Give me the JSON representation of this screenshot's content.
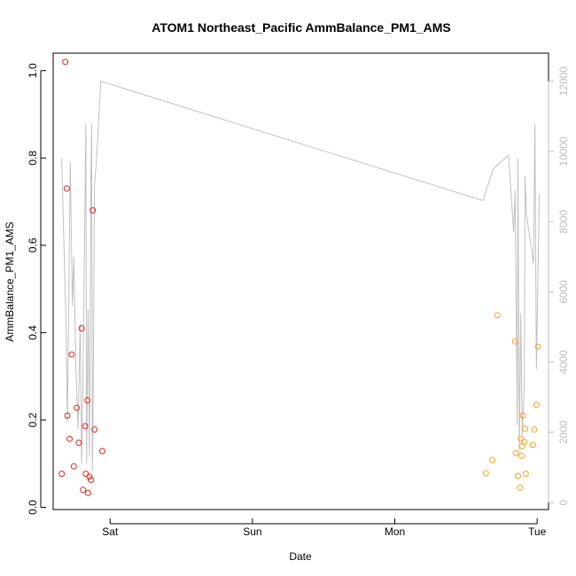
{
  "chart_data": {
    "type": "scatter",
    "title": "ATOM1 Northeast_Pacific AmmBalance_PM1_AMS",
    "xlabel": "Date",
    "ylabel": "AmmBalance_PM1_AMS",
    "x_ticks": [
      {
        "label": "Sat",
        "t": 1.0
      },
      {
        "label": "Sun",
        "t": 2.0
      },
      {
        "label": "Mon",
        "t": 3.0
      },
      {
        "label": "Tue",
        "t": 4.0
      }
    ],
    "xlim": [
      0.6,
      4.08
    ],
    "ylim": [
      -0.005,
      1.04
    ],
    "y_ticks": [
      "0.0",
      "0.2",
      "0.4",
      "0.6",
      "0.8",
      "1.0"
    ],
    "y_tick_values": [
      0,
      0.2,
      0.4,
      0.6,
      0.8,
      1.0
    ],
    "y2lim": [
      -200,
      12800
    ],
    "y2_ticks": [
      "0",
      "2000",
      "4000",
      "6000",
      "8000",
      "10000",
      "12000"
    ],
    "y2_tick_values": [
      0,
      2000,
      4000,
      6000,
      8000,
      10000,
      12000
    ],
    "grid": false,
    "colors": {
      "series_a": "#e8211c",
      "series_b": "#ff9e1f",
      "line": "#c0c0c0",
      "right_axis": "#bdbdbd"
    },
    "series": [
      {
        "color": "#e8211c",
        "points": [
          [
            0.66,
            0.077
          ],
          [
            0.685,
            1.02
          ],
          [
            0.695,
            0.73
          ],
          [
            0.7,
            0.21
          ],
          [
            0.715,
            0.157
          ],
          [
            0.73,
            0.35
          ],
          [
            0.745,
            0.094
          ],
          [
            0.765,
            0.228
          ],
          [
            0.78,
            0.148
          ],
          [
            0.8,
            0.41
          ],
          [
            0.81,
            0.04
          ],
          [
            0.825,
            0.186
          ],
          [
            0.83,
            0.077
          ],
          [
            0.84,
            0.245
          ],
          [
            0.845,
            0.033
          ],
          [
            0.855,
            0.07
          ],
          [
            0.865,
            0.063
          ],
          [
            0.878,
            0.68
          ],
          [
            0.89,
            0.178
          ],
          [
            0.945,
            0.129
          ]
        ]
      },
      {
        "color": "#ff9e1f",
        "points": [
          [
            3.64,
            0.078
          ],
          [
            3.685,
            0.108
          ],
          [
            3.72,
            0.44
          ],
          [
            3.845,
            0.38
          ],
          [
            3.85,
            0.124
          ],
          [
            3.865,
            0.072
          ],
          [
            3.88,
            0.045
          ],
          [
            3.885,
            0.157
          ],
          [
            3.89,
            0.118
          ],
          [
            3.895,
            0.14
          ],
          [
            3.9,
            0.21
          ],
          [
            3.91,
            0.15
          ],
          [
            3.915,
            0.18
          ],
          [
            3.92,
            0.077
          ],
          [
            3.97,
            0.143
          ],
          [
            3.98,
            0.178
          ],
          [
            3.995,
            0.235
          ],
          [
            4.005,
            0.368
          ]
        ]
      },
      {
        "type": "line",
        "axis": "right",
        "color": "#c0c0c0",
        "points": [
          [
            0.66,
            9800
          ],
          [
            0.69,
            5100
          ],
          [
            0.7,
            2300
          ],
          [
            0.72,
            9700
          ],
          [
            0.735,
            5600
          ],
          [
            0.745,
            7000
          ],
          [
            0.76,
            3800
          ],
          [
            0.775,
            2100
          ],
          [
            0.79,
            5100
          ],
          [
            0.8,
            1100
          ],
          [
            0.81,
            3600
          ],
          [
            0.83,
            10800
          ],
          [
            0.835,
            1100
          ],
          [
            0.845,
            5500
          ],
          [
            0.855,
            1300
          ],
          [
            0.865,
            9300
          ],
          [
            0.87,
            10800
          ],
          [
            0.875,
            900
          ],
          [
            0.88,
            2300
          ],
          [
            0.89,
            9000
          ],
          [
            0.905,
            9800
          ],
          [
            0.935,
            12000
          ],
          [
            3.62,
            8600
          ],
          [
            3.69,
            9500
          ],
          [
            3.8,
            9900
          ],
          [
            3.835,
            7700
          ],
          [
            3.845,
            8900
          ],
          [
            3.86,
            2200
          ],
          [
            3.865,
            9800
          ],
          [
            3.875,
            1500
          ],
          [
            3.885,
            5400
          ],
          [
            3.895,
            1900
          ],
          [
            3.91,
            3400
          ],
          [
            3.915,
            9300
          ],
          [
            3.925,
            8200
          ],
          [
            3.975,
            6800
          ],
          [
            3.985,
            10800
          ],
          [
            3.995,
            3800
          ],
          [
            4.015,
            8800
          ]
        ]
      }
    ]
  }
}
